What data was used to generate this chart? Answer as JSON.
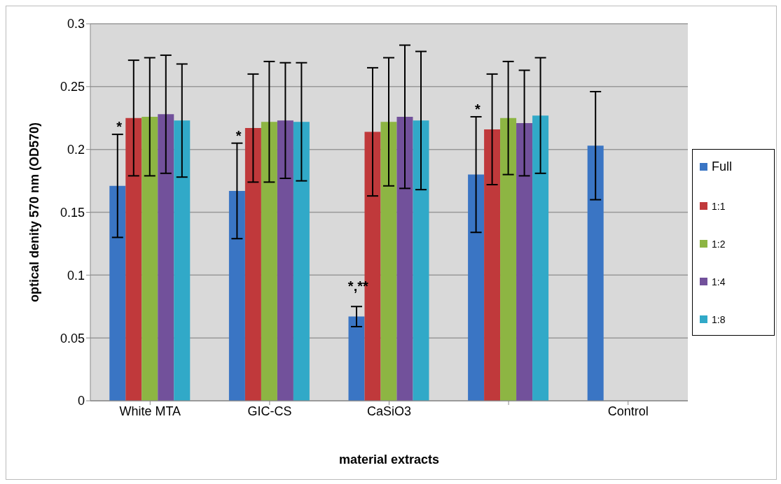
{
  "chart_data": {
    "type": "bar",
    "xlabel": "material extracts",
    "ylabel": "optical denity 570 nm (OD570)",
    "categories": [
      "White MTA",
      "GIC-CS",
      "CaSiO3",
      null,
      "Control"
    ],
    "series": [
      {
        "name": "Full",
        "color": "#3a75c4",
        "values": [
          0.171,
          0.167,
          0.067,
          0.18,
          0.203
        ],
        "errors": [
          0.041,
          0.038,
          0.008,
          0.046,
          0.043
        ]
      },
      {
        "name": "1:1",
        "color": "#c0393b",
        "values": [
          0.225,
          0.217,
          0.214,
          0.216,
          null
        ],
        "errors": [
          0.046,
          0.043,
          0.051,
          0.044,
          null
        ]
      },
      {
        "name": "1:2",
        "color": "#8db543",
        "values": [
          0.226,
          0.222,
          0.222,
          0.225,
          null
        ],
        "errors": [
          0.047,
          0.048,
          0.051,
          0.045,
          null
        ]
      },
      {
        "name": "1:4",
        "color": "#72519b",
        "values": [
          0.228,
          0.223,
          0.226,
          0.221,
          null
        ],
        "errors": [
          0.047,
          0.046,
          0.057,
          0.042,
          null
        ]
      },
      {
        "name": "1:8",
        "color": "#31a9c8",
        "values": [
          0.223,
          0.222,
          0.223,
          0.227,
          null
        ],
        "errors": [
          0.045,
          0.047,
          0.055,
          0.046,
          null
        ]
      }
    ],
    "ylim": [
      0,
      0.3
    ],
    "yticks": [
      0,
      0.05,
      0.1,
      0.15,
      0.2,
      0.25,
      0.3
    ],
    "grid": "y",
    "legend": "right",
    "annotations": [
      "*",
      "*",
      "*,**",
      "*"
    ]
  }
}
